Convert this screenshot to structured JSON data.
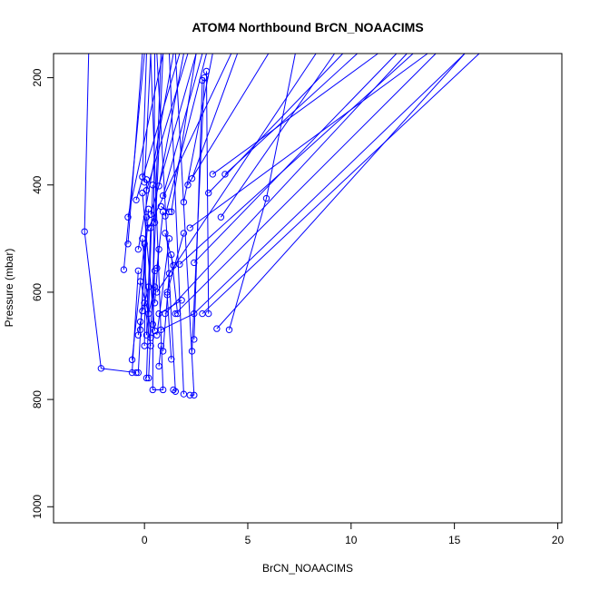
{
  "chart_data": {
    "type": "line",
    "title": "ATOM4 Northbound BrCN_NOAACIMS",
    "xlabel": "BrCN_NOAACIMS",
    "ylabel": "Pressure (mbar)",
    "xlim": [
      -4.4,
      20.2
    ],
    "ylim": [
      1030,
      155
    ],
    "y_reversed": true,
    "x_ticks": [
      0,
      5,
      10,
      15,
      20
    ],
    "y_ticks": [
      200,
      400,
      600,
      800,
      1000
    ],
    "grid": false,
    "color": "#0000ff",
    "segments": [
      {
        "from": [
          -2.9,
          487
        ],
        "to": [
          -2.1,
          742
        ]
      },
      {
        "from": [
          -2.1,
          742
        ],
        "to": [
          -0.4,
          750
        ]
      },
      {
        "from": [
          -2.9,
          487
        ],
        "to": [
          -2.7,
          155
        ]
      },
      {
        "from": [
          -0.8,
          510
        ],
        "to": [
          -0.1,
          155
        ]
      },
      {
        "from": [
          -1.0,
          558
        ],
        "to": [
          0.0,
          155
        ]
      },
      {
        "from": [
          -0.8,
          460
        ],
        "to": [
          0.9,
          155
        ]
      },
      {
        "from": [
          -0.4,
          428
        ],
        "to": [
          1.7,
          155
        ]
      },
      {
        "from": [
          -0.1,
          385
        ],
        "to": [
          0.1,
          155
        ]
      },
      {
        "from": [
          0.0,
          395
        ],
        "to": [
          0.3,
          155
        ]
      },
      {
        "from": [
          0.1,
          410
        ],
        "to": [
          2.1,
          155
        ]
      },
      {
        "from": [
          0.3,
          455
        ],
        "to": [
          2.5,
          155
        ]
      },
      {
        "from": [
          0.5,
          470
        ],
        "to": [
          0.8,
          155
        ]
      },
      {
        "from": [
          0.7,
          402
        ],
        "to": [
          1.9,
          155
        ]
      },
      {
        "from": [
          0.9,
          420
        ],
        "to": [
          2.8,
          155
        ]
      },
      {
        "from": [
          1.0,
          458
        ],
        "to": [
          3.0,
          155
        ]
      },
      {
        "from": [
          -0.3,
          520
        ],
        "to": [
          1.4,
          155
        ]
      },
      {
        "from": [
          0.2,
          480
        ],
        "to": [
          4.2,
          155
        ]
      },
      {
        "from": [
          0.6,
          600
        ],
        "to": [
          8.3,
          155
        ]
      },
      {
        "from": [
          1.0,
          640
        ],
        "to": [
          12.7,
          155
        ]
      },
      {
        "from": [
          1.5,
          640
        ],
        "to": [
          14.1,
          155
        ]
      },
      {
        "from": [
          2.4,
          640
        ],
        "to": [
          15.5,
          155
        ]
      },
      {
        "from": [
          2.8,
          640
        ],
        "to": [
          16.2,
          155
        ]
      },
      {
        "from": [
          3.5,
          668
        ],
        "to": [
          15.5,
          155
        ]
      },
      {
        "from": [
          4.1,
          670
        ],
        "to": [
          5.9,
          425
        ]
      },
      {
        "from": [
          5.9,
          425
        ],
        "to": [
          7.3,
          155
        ]
      },
      {
        "from": [
          3.7,
          460
        ],
        "to": [
          9.2,
          155
        ]
      },
      {
        "from": [
          3.1,
          415
        ],
        "to": [
          9.6,
          155
        ]
      },
      {
        "from": [
          3.9,
          380
        ],
        "to": [
          10.3,
          155
        ]
      },
      {
        "from": [
          3.3,
          380
        ],
        "to": [
          11.3,
          155
        ]
      },
      {
        "from": [
          2.4,
          545
        ],
        "to": [
          12.2,
          155
        ]
      },
      {
        "from": [
          1.7,
          548
        ],
        "to": [
          13.0,
          155
        ]
      },
      {
        "from": [
          2.2,
          480
        ],
        "to": [
          13.7,
          155
        ]
      },
      {
        "from": [
          2.3,
          388
        ],
        "to": [
          4.5,
          155
        ]
      },
      {
        "from": [
          2.1,
          400
        ],
        "to": [
          6.0,
          155
        ]
      },
      {
        "from": [
          1.3,
          450
        ],
        "to": [
          2.5,
          155
        ]
      },
      {
        "from": [
          1.9,
          432
        ],
        "to": [
          3.3,
          155
        ]
      },
      {
        "from": [
          3.1,
          640
        ],
        "to": [
          3.0,
          188
        ]
      },
      {
        "from": [
          2.3,
          710
        ],
        "to": [
          2.9,
          200
        ]
      },
      {
        "from": [
          2.4,
          688
        ],
        "to": [
          2.8,
          205
        ]
      },
      {
        "from": [
          1.9,
          790
        ],
        "to": [
          1.2,
          155
        ]
      },
      {
        "from": [
          2.4,
          792
        ],
        "to": [
          1.5,
          155
        ]
      },
      {
        "from": [
          1.5,
          785
        ],
        "to": [
          0.6,
          155
        ]
      },
      {
        "from": [
          0.9,
          782
        ],
        "to": [
          0.3,
          155
        ]
      },
      {
        "from": [
          0.4,
          782
        ],
        "to": [
          0.5,
          155
        ]
      },
      {
        "from": [
          -0.6,
          750
        ],
        "to": [
          -0.3,
          560
        ]
      },
      {
        "from": [
          -0.6,
          726
        ],
        "to": [
          0.0,
          510
        ]
      },
      {
        "from": [
          -0.3,
          750
        ],
        "to": [
          0.1,
          460
        ]
      },
      {
        "from": [
          0.1,
          760
        ],
        "to": [
          0.4,
          400
        ]
      },
      {
        "from": [
          0.2,
          760
        ],
        "to": [
          0.9,
          155
        ]
      },
      {
        "from": [
          0.3,
          685
        ],
        "to": [
          -0.1,
          500
        ]
      },
      {
        "from": [
          0.1,
          680
        ],
        "to": [
          0.3,
          480
        ]
      },
      {
        "from": [
          0.0,
          700
        ],
        "to": [
          0.1,
          390
        ]
      },
      {
        "from": [
          -0.2,
          670
        ],
        "to": [
          0.2,
          445
        ]
      },
      {
        "from": [
          0.5,
          672
        ],
        "to": [
          -0.1,
          415
        ]
      },
      {
        "from": [
          0.6,
          680
        ],
        "to": [
          1.2,
          500
        ]
      },
      {
        "from": [
          0.8,
          670
        ],
        "to": [
          2.4,
          640
        ]
      },
      {
        "from": [
          0.7,
          640
        ],
        "to": [
          1.8,
          615
        ]
      },
      {
        "from": [
          1.1,
          600
        ],
        "to": [
          1.9,
          490
        ]
      },
      {
        "from": [
          0.9,
          710
        ],
        "to": [
          1.2,
          565
        ]
      },
      {
        "from": [
          1.3,
          725
        ],
        "to": [
          1.1,
          605
        ]
      },
      {
        "from": [
          -0.2,
          580
        ],
        "to": [
          0.2,
          640
        ]
      },
      {
        "from": [
          0.4,
          660
        ],
        "to": [
          0.5,
          560
        ]
      },
      {
        "from": [
          -0.1,
          635
        ],
        "to": [
          0.2,
          590
        ]
      },
      {
        "from": [
          0.3,
          700
        ],
        "to": [
          0.0,
          620
        ]
      },
      {
        "from": [
          0.5,
          620
        ],
        "to": [
          0.7,
          520
        ]
      },
      {
        "from": [
          0.6,
          555
        ],
        "to": [
          0.9,
          450
        ]
      },
      {
        "from": [
          0.8,
          440
        ],
        "to": [
          1.2,
          450
        ]
      },
      {
        "from": [
          1.0,
          490
        ],
        "to": [
          1.4,
          550
        ]
      },
      {
        "from": [
          1.6,
          640
        ],
        "to": [
          1.3,
          530
        ]
      },
      {
        "from": [
          1.4,
          782
        ],
        "to": [
          1.5,
          785
        ]
      },
      {
        "from": [
          2.2,
          792
        ],
        "to": [
          2.4,
          792
        ]
      },
      {
        "from": [
          0.4,
          782
        ],
        "to": [
          0.9,
          782
        ]
      },
      {
        "from": [
          0.7,
          738
        ],
        "to": [
          0.8,
          700
        ]
      },
      {
        "from": [
          -0.3,
          680
        ],
        "to": [
          -0.2,
          655
        ]
      },
      {
        "from": [
          0.2,
          640
        ],
        "to": [
          0.5,
          590
        ]
      }
    ]
  }
}
